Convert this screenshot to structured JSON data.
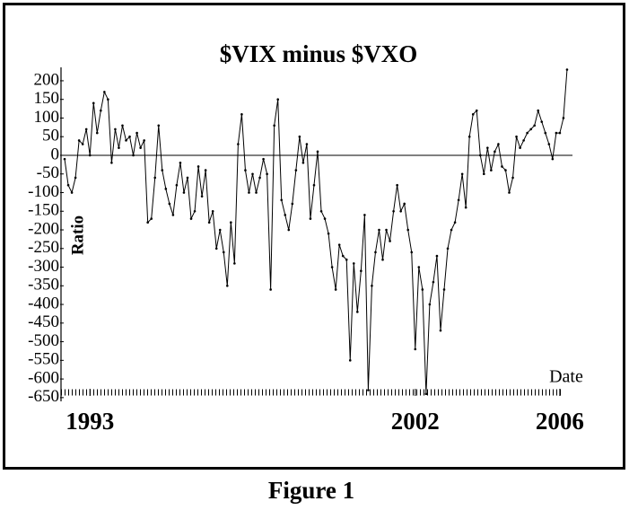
{
  "chart_data": {
    "type": "line",
    "title": "$VIX minus $VXO",
    "xlabel": "Date",
    "ylabel": "Ratio",
    "caption": "Figure 1",
    "color": "#000000",
    "zero_line": true,
    "xlim": [
      1992.2,
      2006.35
    ],
    "xticks": [
      1993,
      2002,
      2006
    ],
    "ylim": [
      -660,
      236
    ],
    "yticks": [
      200,
      150,
      100,
      50,
      0,
      -50,
      -100,
      -150,
      -200,
      -250,
      -300,
      -350,
      -400,
      -450,
      -500,
      -550,
      -600,
      -650
    ],
    "x": [
      1992.3,
      1992.4,
      1992.5,
      1992.6,
      1992.7,
      1992.8,
      1992.9,
      1993.0,
      1993.1,
      1993.2,
      1993.3,
      1993.4,
      1993.5,
      1993.6,
      1993.7,
      1993.8,
      1993.9,
      1994.0,
      1994.1,
      1994.2,
      1994.3,
      1994.4,
      1994.5,
      1994.6,
      1994.7,
      1994.8,
      1994.9,
      1995.0,
      1995.1,
      1995.2,
      1995.3,
      1995.4,
      1995.5,
      1995.6,
      1995.7,
      1995.8,
      1995.9,
      1996.0,
      1996.1,
      1996.2,
      1996.3,
      1996.4,
      1996.5,
      1996.6,
      1996.7,
      1996.8,
      1996.9,
      1997.0,
      1997.1,
      1997.2,
      1997.3,
      1997.4,
      1997.5,
      1997.6,
      1997.7,
      1997.8,
      1997.9,
      1998.0,
      1998.1,
      1998.2,
      1998.3,
      1998.4,
      1998.5,
      1998.6,
      1998.7,
      1998.8,
      1998.9,
      1999.0,
      1999.1,
      1999.2,
      1999.3,
      1999.4,
      1999.5,
      1999.6,
      1999.7,
      1999.8,
      1999.9,
      2000.0,
      2000.1,
      2000.2,
      2000.3,
      2000.4,
      2000.5,
      2000.6,
      2000.7,
      2000.8,
      2000.9,
      2001.0,
      2001.1,
      2001.2,
      2001.3,
      2001.4,
      2001.5,
      2001.6,
      2001.7,
      2001.8,
      2001.9,
      2002.0,
      2002.1,
      2002.2,
      2002.3,
      2002.4,
      2002.5,
      2002.6,
      2002.7,
      2002.8,
      2002.9,
      2003.0,
      2003.1,
      2003.2,
      2003.3,
      2003.4,
      2003.5,
      2003.6,
      2003.7,
      2003.8,
      2003.9,
      2004.0,
      2004.1,
      2004.2,
      2004.3,
      2004.4,
      2004.5,
      2004.6,
      2004.7,
      2004.8,
      2004.9,
      2005.0,
      2005.1,
      2005.2,
      2005.3,
      2005.4,
      2005.5,
      2005.6,
      2005.7,
      2005.8,
      2005.9,
      2006.0,
      2006.1,
      2006.2
    ],
    "values": [
      -10,
      -80,
      -100,
      -60,
      40,
      30,
      70,
      0,
      140,
      60,
      120,
      170,
      150,
      -20,
      70,
      20,
      80,
      40,
      50,
      0,
      60,
      20,
      40,
      -180,
      -170,
      -60,
      80,
      -40,
      -90,
      -130,
      -160,
      -80,
      -20,
      -100,
      -60,
      -170,
      -150,
      -30,
      -110,
      -40,
      -180,
      -150,
      -250,
      -200,
      -260,
      -350,
      -180,
      -290,
      30,
      110,
      -40,
      -100,
      -50,
      -100,
      -60,
      -10,
      -50,
      -360,
      80,
      150,
      -120,
      -160,
      -200,
      -130,
      -40,
      50,
      -20,
      30,
      -170,
      -80,
      10,
      -150,
      -170,
      -210,
      -300,
      -360,
      -240,
      -270,
      -280,
      -550,
      -290,
      -420,
      -310,
      -160,
      -630,
      -350,
      -260,
      -200,
      -280,
      -200,
      -230,
      -150,
      -80,
      -150,
      -130,
      -200,
      -260,
      -520,
      -300,
      -360,
      -640,
      -400,
      -340,
      -270,
      -470,
      -360,
      -250,
      -200,
      -180,
      -120,
      -50,
      -140,
      50,
      110,
      120,
      0,
      -50,
      20,
      -40,
      10,
      30,
      -30,
      -40,
      -100,
      -60,
      50,
      20,
      40,
      60,
      70,
      80,
      120,
      90,
      60,
      30,
      -10,
      60,
      60,
      100,
      230
    ]
  }
}
